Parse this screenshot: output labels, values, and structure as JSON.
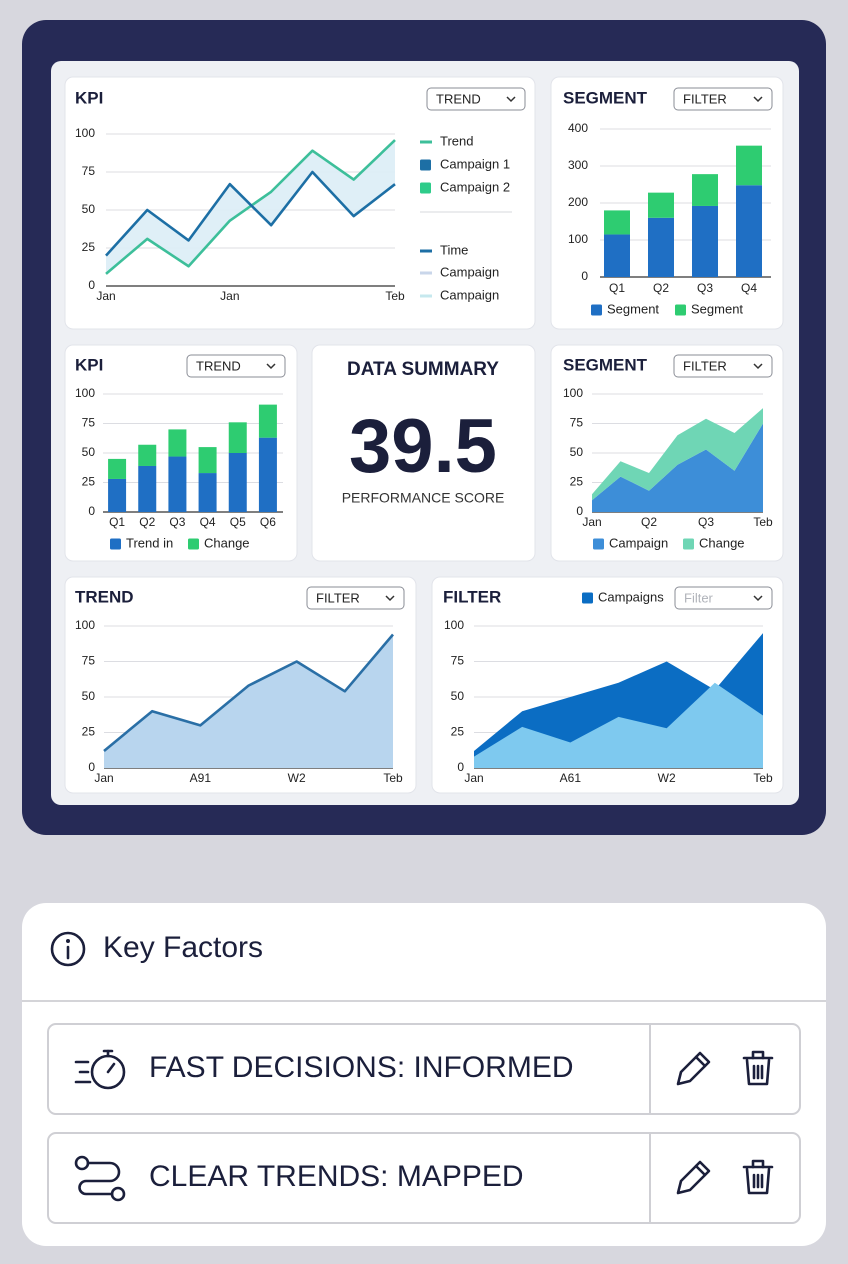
{
  "chart_data": [
    {
      "type": "line",
      "title": "KPI",
      "control": "TREND",
      "categories": [
        "Jan",
        null,
        null,
        "Jan",
        null,
        null,
        null,
        "Teb"
      ],
      "series": [
        {
          "name": "Trend",
          "color": "#3dbf9a",
          "legend_shape": "line",
          "values": [
            8,
            31,
            13,
            43,
            62,
            89,
            70,
            96
          ]
        },
        {
          "name": "Campaign 1",
          "color": "#1d6fa5",
          "legend_shape": "square",
          "values": [
            20,
            50,
            30,
            67,
            40,
            75,
            46,
            67
          ]
        }
      ],
      "extra_legend": [
        {
          "name": "Campaign 2",
          "color": "#2ecc8a",
          "shape": "square"
        },
        {
          "name": "Time",
          "color": "#1d6fa5",
          "shape": "line"
        },
        {
          "name": "Campaign",
          "color": "#c9d6ea",
          "shape": "line"
        },
        {
          "name": "Campaign",
          "color": "#c6e8ee",
          "shape": "line"
        }
      ],
      "band_fill": "#dcedf6",
      "ylim": [
        0,
        100
      ],
      "yticks": [
        0,
        25,
        50,
        75,
        100
      ],
      "grid": true
    },
    {
      "type": "bar",
      "stacked": true,
      "title": "SEGMENT",
      "control": "FILTER",
      "categories": [
        "Q1",
        "Q2",
        "Q3",
        "Q4"
      ],
      "series": [
        {
          "name": "Segment",
          "color": "#1f6fc4",
          "values": [
            115,
            160,
            192,
            248
          ]
        },
        {
          "name": "Segment",
          "color": "#2ecc71",
          "values": [
            65,
            68,
            86,
            107
          ]
        }
      ],
      "ylim": [
        0,
        400
      ],
      "yticks": [
        0,
        100,
        200,
        300,
        400
      ],
      "grid": true
    },
    {
      "type": "bar",
      "stacked": true,
      "title": "KPI",
      "control": "TREND",
      "categories": [
        "Q1",
        "Q2",
        "Q3",
        "Q4",
        "Q5",
        "Q6"
      ],
      "series": [
        {
          "name": "Trend in",
          "color": "#1f6fc4",
          "values": [
            28,
            39,
            47,
            33,
            50,
            63
          ]
        },
        {
          "name": "Change",
          "color": "#2ecc71",
          "values": [
            17,
            18,
            23,
            22,
            26,
            28
          ]
        }
      ],
      "ylim": [
        0,
        100
      ],
      "yticks": [
        0,
        25,
        50,
        75,
        100
      ],
      "grid": true
    },
    {
      "type": "area",
      "stacked": true,
      "title": "SEGMENT",
      "control": "FILTER",
      "categories": [
        "Jan",
        null,
        "Q2",
        null,
        "Q3",
        null,
        "Teb"
      ],
      "series": [
        {
          "name": "Campaign",
          "color": "#3d8ed8",
          "values": [
            10,
            30,
            18,
            40,
            53,
            35,
            75
          ]
        },
        {
          "name": "Change",
          "color": "#6fd6b5",
          "values": [
            5,
            13,
            15,
            25,
            26,
            32,
            13
          ]
        }
      ],
      "ylim": [
        0,
        100
      ],
      "yticks": [
        0,
        25,
        50,
        75,
        100
      ],
      "grid": true
    },
    {
      "type": "area",
      "stacked": false,
      "title": "TREND",
      "control": "FILTER",
      "categories": [
        "Jan",
        null,
        "A91",
        null,
        "W2",
        null,
        "Teb"
      ],
      "series": [
        {
          "color": "#b8d5ee",
          "line_color": "#2a6fa6",
          "values": [
            12,
            40,
            30,
            58,
            75,
            54,
            94
          ]
        }
      ],
      "ylim": [
        0,
        100
      ],
      "yticks": [
        0,
        25,
        50,
        75,
        100
      ],
      "grid": true
    },
    {
      "type": "area",
      "stacked": false,
      "title": "FILTER",
      "control": "Filter",
      "categories": [
        "Jan",
        null,
        "A61",
        null,
        "W2",
        null,
        "Teb"
      ],
      "series": [
        {
          "name": "Campaigns",
          "color": "#0b6dc3",
          "values": [
            12,
            40,
            50,
            60,
            75,
            55,
            95
          ]
        },
        {
          "color": "#7ec9ef",
          "values": [
            8,
            29,
            18,
            36,
            28,
            60,
            37
          ]
        }
      ],
      "ylim": [
        0,
        100
      ],
      "yticks": [
        0,
        25,
        50,
        75,
        100
      ],
      "grid": true
    }
  ],
  "summary": {
    "title": "DATA SUMMARY",
    "value": 39.5,
    "label": "PERFORMANCE SCORE"
  },
  "key_factors": {
    "title": "Key Factors",
    "items": [
      "FAST DECISIONS: INFORMED",
      "CLEAR TRENDS: MAPPED"
    ]
  }
}
